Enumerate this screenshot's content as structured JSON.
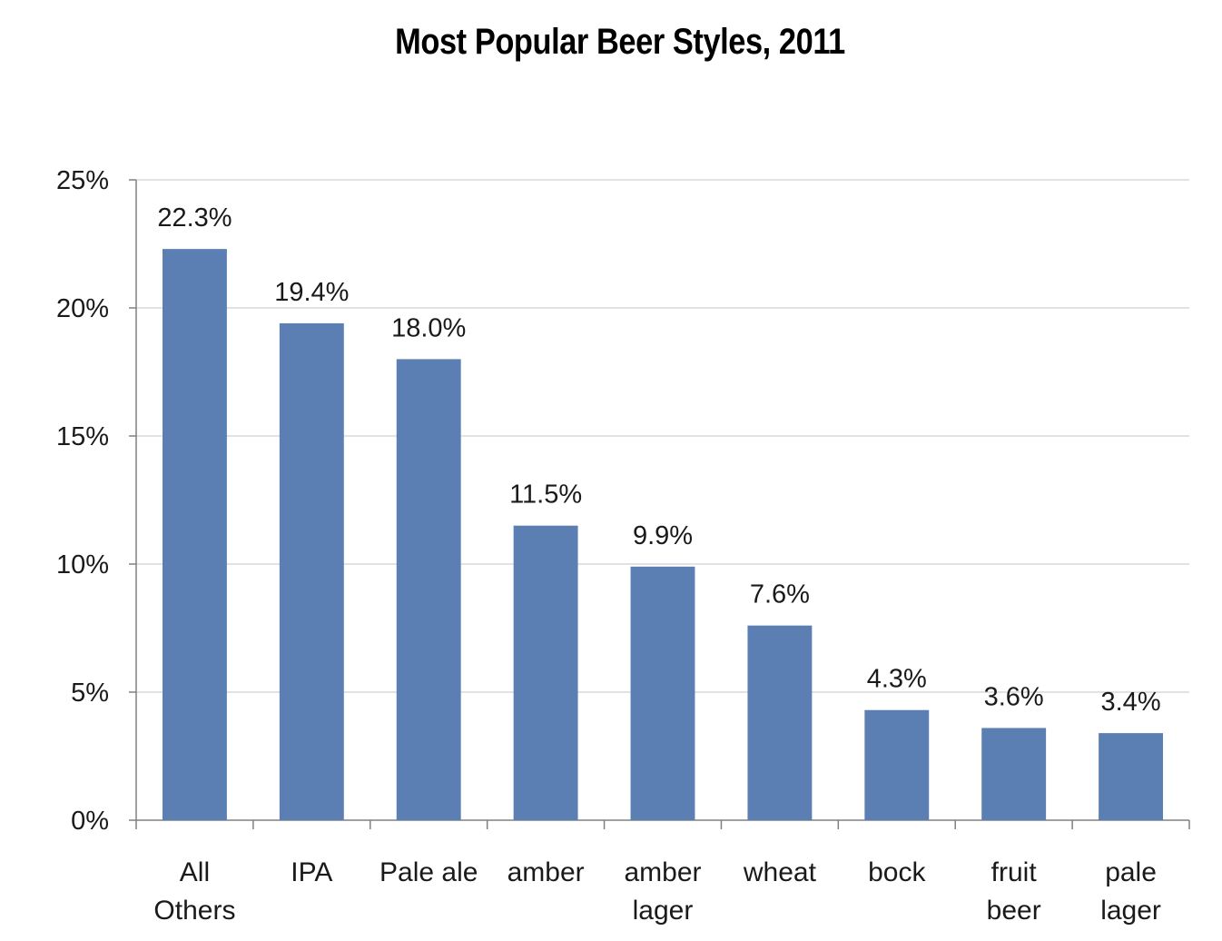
{
  "chart_data": {
    "type": "bar",
    "title": "Most Popular Beer Styles, 2011",
    "xlabel": "",
    "ylabel": "",
    "categories": [
      [
        "All",
        "Others"
      ],
      [
        "IPA"
      ],
      [
        "Pale ale"
      ],
      [
        "amber"
      ],
      [
        "amber",
        "lager"
      ],
      [
        "wheat"
      ],
      [
        "bock"
      ],
      [
        "fruit",
        "beer"
      ],
      [
        "pale",
        "lager"
      ]
    ],
    "values": [
      22.3,
      19.4,
      18.0,
      11.5,
      9.9,
      7.6,
      4.3,
      3.6,
      3.4
    ],
    "value_labels": [
      "22.3%",
      "19.4%",
      "18.0%",
      "11.5%",
      "9.9%",
      "7.6%",
      "4.3%",
      "3.6%",
      "3.4%"
    ],
    "ylim": [
      0,
      25
    ],
    "yticks": [
      0,
      5,
      10,
      15,
      20,
      25
    ],
    "ytick_labels": [
      "0%",
      "5%",
      "10%",
      "15%",
      "20%",
      "25%"
    ],
    "grid": true,
    "legend": "none",
    "bar_color": "#5b7fb3",
    "grid_color": "#d9d9d9",
    "axis_color": "#808080"
  }
}
